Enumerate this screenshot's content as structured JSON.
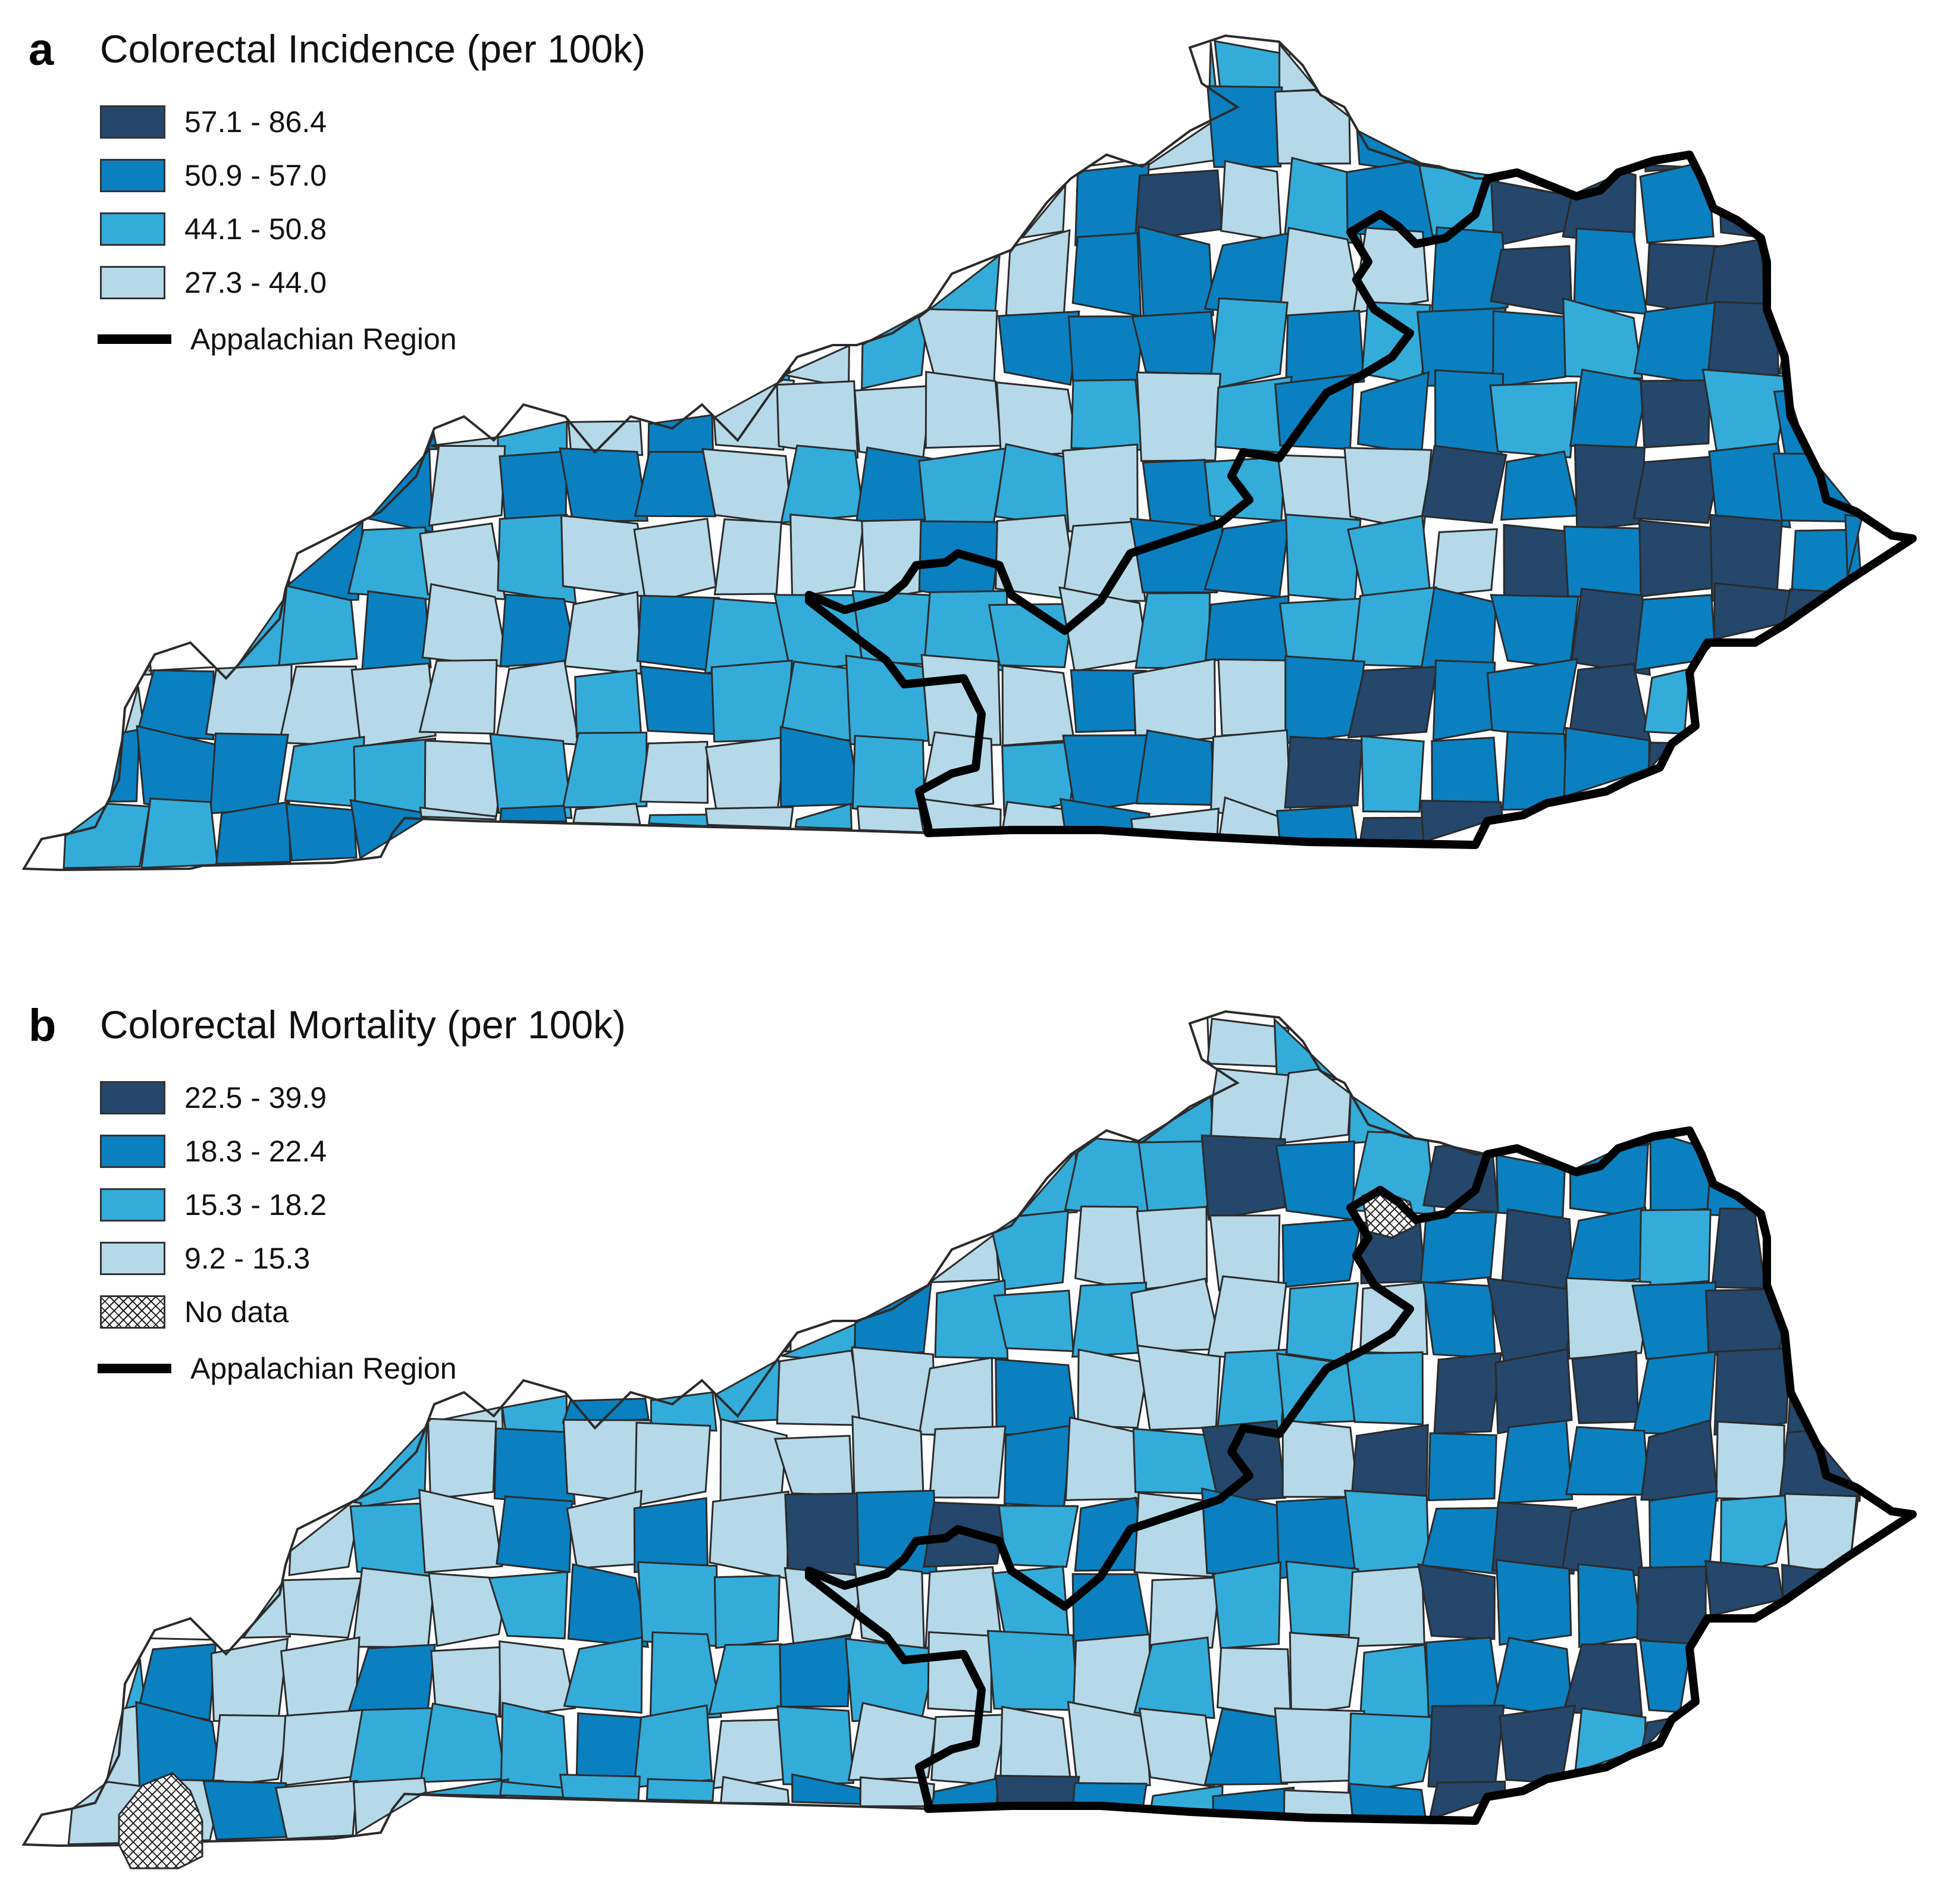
{
  "colors": {
    "darkest": "#24476B",
    "dark": "#0A80C0",
    "medium": "#34ACDA",
    "light": "#B5D9E8",
    "boundary": "#000000"
  },
  "panels": [
    {
      "letter": "a",
      "title": "Colorectal Incidence (per 100k)",
      "legend": [
        {
          "label": "57.1 - 86.4",
          "class": "darkest"
        },
        {
          "label": "50.9 - 57.0",
          "class": "dark"
        },
        {
          "label": "44.1 - 50.8",
          "class": "medium"
        },
        {
          "label": "27.3 - 44.0",
          "class": "light"
        }
      ],
      "boundary_label": "Appalachian Region"
    },
    {
      "letter": "b",
      "title": "Colorectal Mortality (per 100k)",
      "legend": [
        {
          "label": "22.5 - 39.9",
          "class": "darkest"
        },
        {
          "label": "18.3 - 22.4",
          "class": "dark"
        },
        {
          "label": "15.3 - 18.2",
          "class": "medium"
        },
        {
          "label": "9.2 - 15.3",
          "class": "light"
        }
      ],
      "no_data_label": "No data",
      "boundary_label": "Appalachian Region"
    }
  ]
}
